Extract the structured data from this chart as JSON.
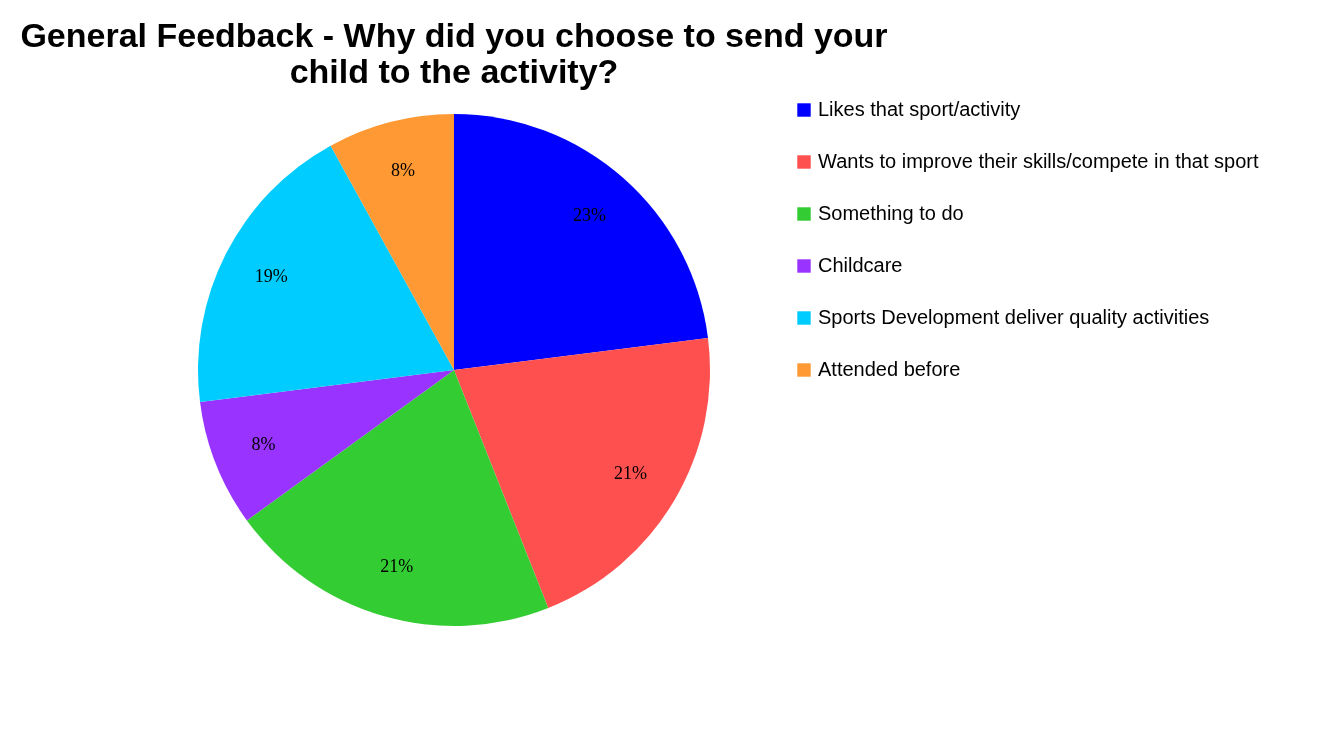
{
  "chart_data": {
    "type": "pie",
    "title": "General Feedback - Why did you choose to send your child to the activity?",
    "categories": [
      "Likes that sport/activity",
      "Wants to improve their skills/compete in that sport",
      "Something to do",
      "Childcare",
      "Sports Development  deliver quality activities",
      "Attended before"
    ],
    "values": [
      23,
      21,
      21,
      8,
      19,
      8
    ],
    "colors": [
      "#0000ff",
      "#ff5050",
      "#33cc33",
      "#9933ff",
      "#00ccff",
      "#ff9933"
    ],
    "value_labels": [
      "23%",
      "21%",
      "21%",
      "8%",
      "19%",
      "8%"
    ],
    "legend": "right"
  }
}
